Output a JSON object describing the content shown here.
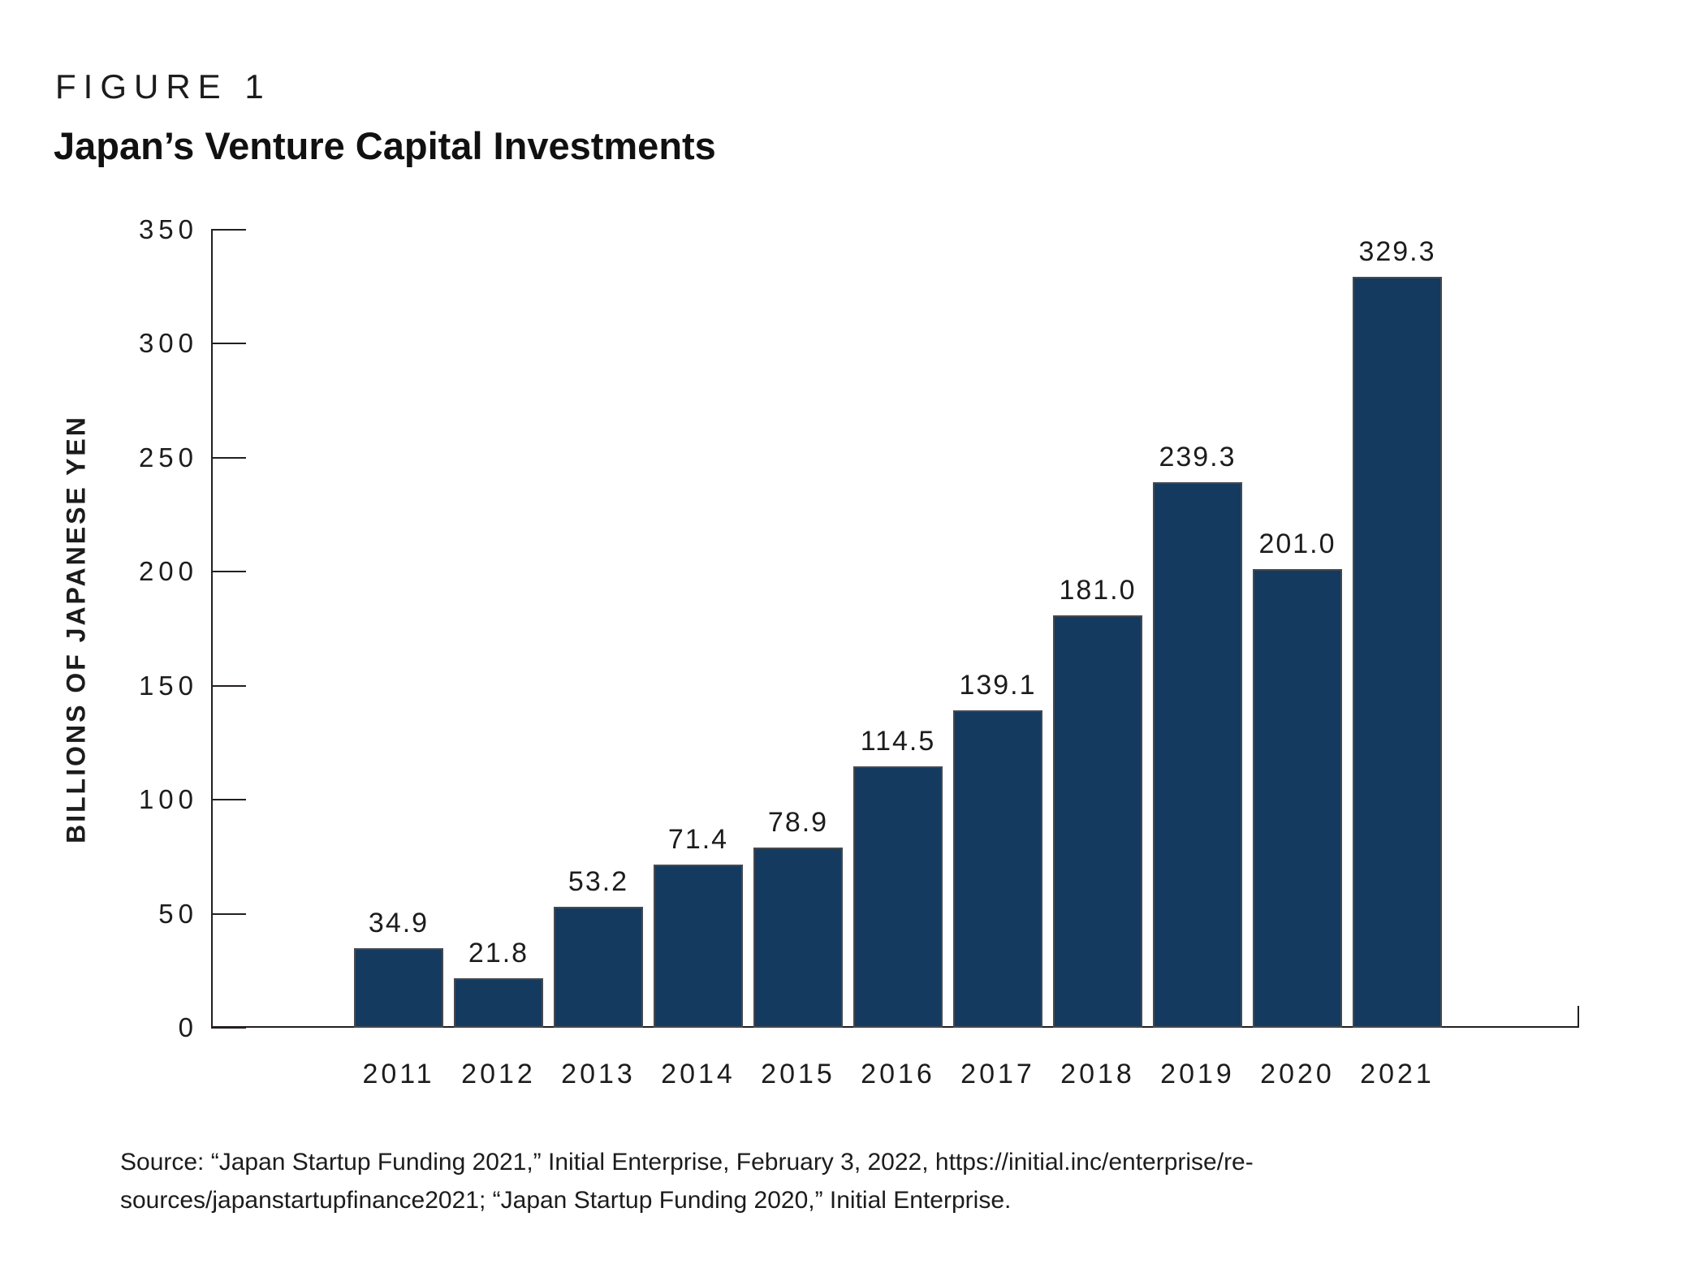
{
  "figure": {
    "label": "FIGURE 1",
    "title": "Japan’s Venture Capital Investments"
  },
  "chart_data": {
    "type": "bar",
    "title": "Japan’s Venture Capital Investments",
    "categories": [
      "2011",
      "2012",
      "2013",
      "2014",
      "2015",
      "2016",
      "2017",
      "2018",
      "2019",
      "2020",
      "2021"
    ],
    "values": [
      34.9,
      21.8,
      53.2,
      71.4,
      78.9,
      114.5,
      139.1,
      181.0,
      239.3,
      201.0,
      329.3
    ],
    "value_labels": [
      "34.9",
      "21.8",
      "53.2",
      "71.4",
      "78.9",
      "114.5",
      "139.1",
      "181.0",
      "239.3",
      "201.0",
      "329.3"
    ],
    "xlabel": "",
    "ylabel": "BILLIONS OF JAPANESE YEN",
    "ylim": [
      0,
      350
    ],
    "yticks": [
      0,
      50,
      100,
      150,
      200,
      250,
      300,
      350
    ],
    "grid": false,
    "legend": null,
    "bar_color": "#143a5f",
    "bar_edge_color": "#45494f",
    "axis_color": "#231f20",
    "text_color": "#1c1c1c"
  },
  "source": {
    "lines": [
      "Source: “Japan Startup Funding 2021,” Initial Enterprise, February 3, 2022, https://initial.inc/enterprise/re-",
      "sources/japanstartupfinance2021; “Japan Startup Funding 2020,” Initial Enterprise."
    ]
  }
}
